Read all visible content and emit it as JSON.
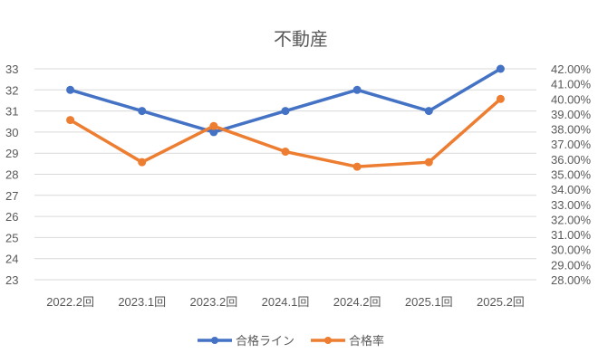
{
  "chart_data": {
    "type": "line",
    "title": "不動産",
    "categories": [
      "2022.2回",
      "2023.1回",
      "2023.2回",
      "2024.1回",
      "2024.2回",
      "2025.1回",
      "2025.2回"
    ],
    "series": [
      {
        "name": "合格ライン",
        "axis": "left",
        "color": "#4472C4",
        "values": [
          32,
          31,
          30,
          31,
          32,
          31,
          33
        ]
      },
      {
        "name": "合格率",
        "axis": "right",
        "color": "#ED7D31",
        "values": [
          38.6,
          35.8,
          38.2,
          36.5,
          35.5,
          35.8,
          40.0
        ]
      }
    ],
    "left_axis": {
      "ylim": [
        23,
        33
      ],
      "step": 1,
      "ticks": [
        "23",
        "24",
        "25",
        "26",
        "27",
        "28",
        "29",
        "30",
        "31",
        "32",
        "33"
      ]
    },
    "right_axis": {
      "ylim": [
        28,
        42
      ],
      "step": 1,
      "unit": "%",
      "ticks": [
        "28.00%",
        "29.00%",
        "30.00%",
        "31.00%",
        "32.00%",
        "33.00%",
        "34.00%",
        "35.00%",
        "36.00%",
        "37.00%",
        "38.00%",
        "39.00%",
        "40.00%",
        "41.00%",
        "42.00%"
      ]
    },
    "grid": true,
    "legend": "bottom"
  }
}
